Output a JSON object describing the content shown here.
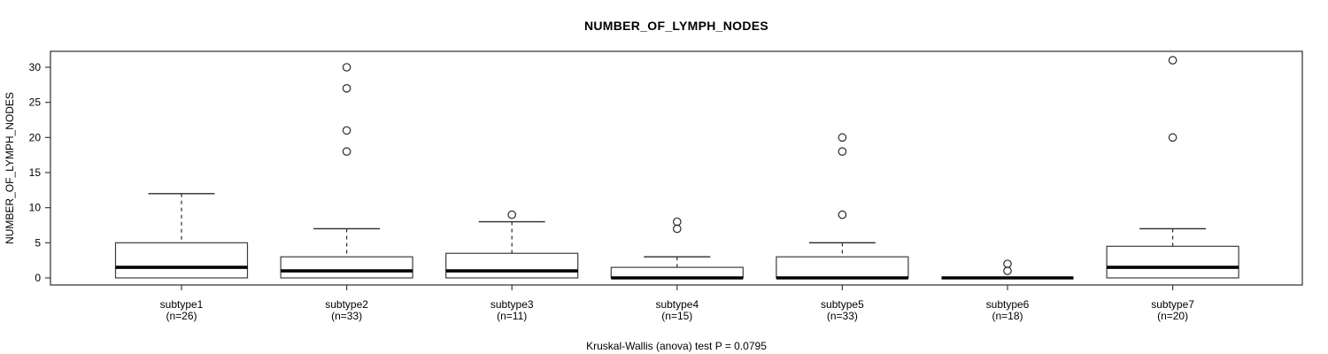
{
  "chart_data": {
    "type": "boxplot",
    "title": "NUMBER_OF_LYMPH_NODES",
    "ylabel": "NUMBER_OF_LYMPH_NODES",
    "xlabel": "",
    "annotation": "Kruskal-Wallis (anova) test P = 0.0795",
    "grid": false,
    "legend": "none",
    "ylim": [
      -1,
      32
    ],
    "yticks": [
      0,
      5,
      10,
      15,
      20,
      25,
      30
    ],
    "categories": [
      "subtype1",
      "subtype2",
      "subtype3",
      "subtype4",
      "subtype5",
      "subtype6",
      "subtype7"
    ],
    "boxes": [
      {
        "label": "subtype1",
        "n_label": "(n=26)",
        "n": 26,
        "whisker_low": 0,
        "q1": 0,
        "median": 1.5,
        "q3": 5,
        "whisker_high": 12,
        "outliers": []
      },
      {
        "label": "subtype2",
        "n_label": "(n=33)",
        "n": 33,
        "whisker_low": 0,
        "q1": 0,
        "median": 1,
        "q3": 3,
        "whisker_high": 7,
        "outliers": [
          18,
          21,
          27,
          30
        ]
      },
      {
        "label": "subtype3",
        "n_label": "(n=11)",
        "n": 11,
        "whisker_low": 0,
        "q1": 0,
        "median": 1,
        "q3": 3.5,
        "whisker_high": 8,
        "outliers": [
          9
        ]
      },
      {
        "label": "subtype4",
        "n_label": "(n=15)",
        "n": 15,
        "whisker_low": 0,
        "q1": 0,
        "median": 0,
        "q3": 1.5,
        "whisker_high": 3,
        "outliers": [
          7,
          8
        ]
      },
      {
        "label": "subtype5",
        "n_label": "(n=33)",
        "n": 33,
        "whisker_low": 0,
        "q1": 0,
        "median": 0,
        "q3": 3,
        "whisker_high": 5,
        "outliers": [
          9,
          18,
          20
        ]
      },
      {
        "label": "subtype6",
        "n_label": "(n=18)",
        "n": 18,
        "whisker_low": 0,
        "q1": 0,
        "median": 0,
        "q3": 0,
        "whisker_high": 0,
        "outliers": [
          1,
          2
        ]
      },
      {
        "label": "subtype7",
        "n_label": "(n=20)",
        "n": 20,
        "whisker_low": 0,
        "q1": 0,
        "median": 1.5,
        "q3": 4.5,
        "whisker_high": 7,
        "outliers": [
          20,
          31
        ]
      }
    ],
    "colors": {
      "frame": "#3c3c3c",
      "box_stroke": "#3c3c3c",
      "box_fill": "#ffffff",
      "median": "#000000",
      "whisker": "#2a2a2a",
      "outlier": "#2a2a2a",
      "text": "#000000"
    }
  }
}
